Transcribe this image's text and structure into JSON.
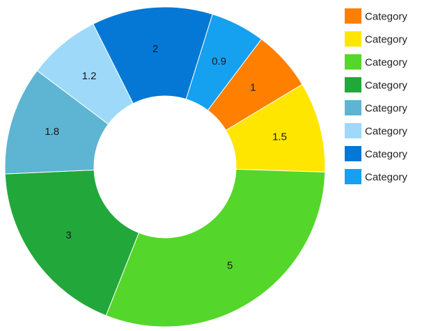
{
  "chart_data": {
    "type": "pie",
    "variant": "donut",
    "title": "",
    "legend_position": "right",
    "slices": [
      {
        "label": "Category",
        "value": 1,
        "color": "#FF7F00"
      },
      {
        "label": "Category",
        "value": 1.5,
        "color": "#FFE600"
      },
      {
        "label": "Category",
        "value": 5,
        "color": "#55D62A"
      },
      {
        "label": "Category",
        "value": 3,
        "color": "#22A83A"
      },
      {
        "label": "Category",
        "value": 1.8,
        "color": "#5EB4D3"
      },
      {
        "label": "Category",
        "value": 1.2,
        "color": "#9ED9FA"
      },
      {
        "label": "Category",
        "value": 2,
        "color": "#0478D4"
      },
      {
        "label": "Category",
        "value": 0.9,
        "color": "#16A0F0"
      }
    ],
    "data_labels": [
      "1",
      "1.5",
      "5",
      "3",
      "1.8",
      "1.2",
      "2",
      "0.9"
    ]
  }
}
